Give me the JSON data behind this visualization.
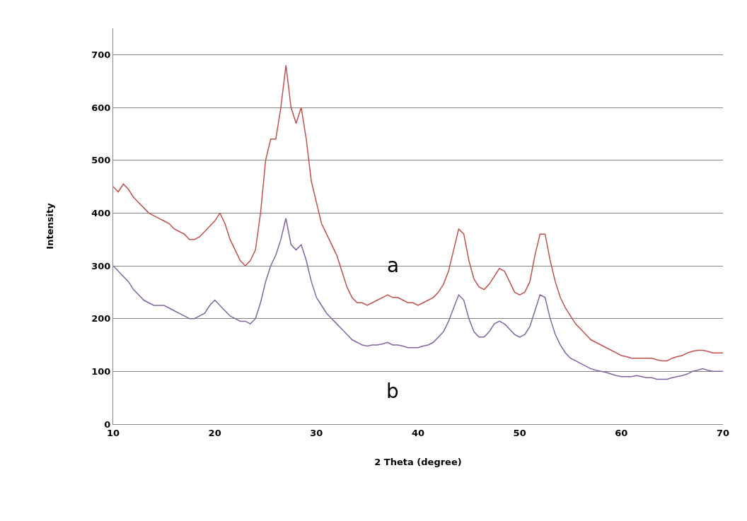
{
  "chart_data": {
    "type": "line",
    "xlabel": "2 Theta (degree)",
    "ylabel": "Intensity",
    "x": [
      10,
      10.5,
      11,
      11.5,
      12,
      12.5,
      13,
      13.5,
      14,
      14.5,
      15,
      15.5,
      16,
      16.5,
      17,
      17.5,
      18,
      18.5,
      19,
      19.5,
      20,
      20.5,
      21,
      21.5,
      22,
      22.5,
      23,
      23.5,
      24,
      24.5,
      25,
      25.5,
      26,
      26.5,
      27,
      27.5,
      28,
      28.5,
      29,
      29.5,
      30,
      30.5,
      31,
      31.5,
      32,
      32.5,
      33,
      33.5,
      34,
      34.5,
      35,
      35.5,
      36,
      36.5,
      37,
      37.5,
      38,
      38.5,
      39,
      39.5,
      40,
      40.5,
      41,
      41.5,
      42,
      42.5,
      43,
      43.5,
      44,
      44.5,
      45,
      45.5,
      46,
      46.5,
      47,
      47.5,
      48,
      48.5,
      49,
      49.5,
      50,
      50.5,
      51,
      51.5,
      52,
      52.5,
      53,
      53.5,
      54,
      54.5,
      55,
      55.5,
      56,
      56.5,
      57,
      57.5,
      58,
      58.5,
      59,
      59.5,
      60,
      60.5,
      61,
      61.5,
      62,
      62.5,
      63,
      63.5,
      64,
      64.5,
      65,
      65.5,
      66,
      66.5,
      67,
      67.5,
      68,
      68.5,
      69,
      69.5,
      70
    ],
    "series": [
      {
        "name": "a",
        "color": "#c0504d",
        "values": [
          450,
          440,
          455,
          445,
          430,
          420,
          410,
          400,
          395,
          390,
          385,
          380,
          370,
          365,
          360,
          350,
          350,
          355,
          365,
          375,
          385,
          400,
          380,
          350,
          330,
          310,
          300,
          310,
          330,
          400,
          500,
          540,
          540,
          600,
          680,
          600,
          570,
          600,
          540,
          460,
          420,
          380,
          360,
          340,
          320,
          290,
          260,
          240,
          230,
          230,
          225,
          230,
          235,
          240,
          245,
          240,
          240,
          235,
          230,
          230,
          225,
          230,
          235,
          240,
          250,
          265,
          290,
          330,
          370,
          360,
          310,
          275,
          260,
          255,
          265,
          280,
          295,
          290,
          270,
          250,
          245,
          250,
          270,
          320,
          360,
          360,
          310,
          270,
          240,
          220,
          205,
          190,
          180,
          170,
          160,
          155,
          150,
          145,
          140,
          135,
          130,
          128,
          125,
          125,
          125,
          125,
          125,
          122,
          120,
          120,
          125,
          128,
          130,
          135,
          138,
          140,
          140,
          138,
          135,
          135,
          135
        ]
      },
      {
        "name": "b",
        "color": "#8064a2",
        "values": [
          300,
          290,
          280,
          270,
          255,
          245,
          235,
          230,
          225,
          225,
          225,
          220,
          215,
          210,
          205,
          200,
          200,
          205,
          210,
          225,
          235,
          225,
          215,
          205,
          200,
          195,
          195,
          190,
          200,
          230,
          270,
          300,
          320,
          350,
          390,
          340,
          330,
          340,
          310,
          270,
          240,
          225,
          210,
          200,
          190,
          180,
          170,
          160,
          155,
          150,
          148,
          150,
          150,
          152,
          155,
          150,
          150,
          148,
          145,
          145,
          145,
          148,
          150,
          155,
          165,
          175,
          195,
          220,
          245,
          235,
          200,
          175,
          165,
          165,
          175,
          190,
          195,
          190,
          180,
          170,
          165,
          170,
          185,
          215,
          245,
          240,
          200,
          170,
          150,
          135,
          125,
          120,
          115,
          110,
          105,
          102,
          100,
          98,
          95,
          92,
          90,
          90,
          90,
          92,
          90,
          88,
          88,
          85,
          85,
          85,
          88,
          90,
          92,
          95,
          100,
          102,
          105,
          102,
          100,
          100,
          100
        ]
      }
    ],
    "xlim": [
      10,
      70
    ],
    "xticks": [
      10,
      20,
      30,
      40,
      50,
      60,
      70
    ],
    "ylim": [
      0,
      750
    ],
    "yticks": [
      0,
      100,
      200,
      300,
      400,
      500,
      600,
      700
    ],
    "grid": "y",
    "legend": false,
    "marker": "none",
    "line_style": "solid"
  }
}
